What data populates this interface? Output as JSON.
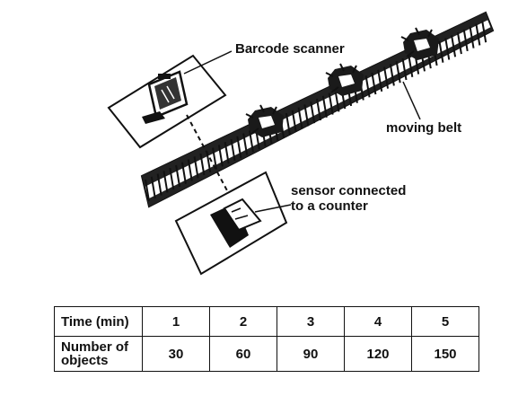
{
  "labels": {
    "barcode_scanner": "Barcode scanner",
    "moving_belt": "moving belt",
    "sensor": "sensor connected\nto a counter"
  },
  "table": {
    "row_headers": [
      "Time (min)",
      "Number of\nobjects"
    ],
    "time": [
      "1",
      "2",
      "3",
      "4",
      "5"
    ],
    "objects": [
      "30",
      "60",
      "90",
      "120",
      "150"
    ]
  },
  "colors": {
    "ink": "#111111",
    "background": "#ffffff"
  }
}
